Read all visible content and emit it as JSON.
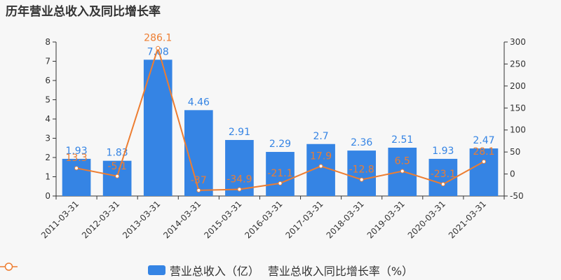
{
  "title": "历年营业总收入及同比增长率",
  "colors": {
    "bar": "#3584e4",
    "line": "#ed7d31",
    "axis": "#333333",
    "grid": "#e0e0e0"
  },
  "legend": {
    "bar_label": "营业总收入（亿）",
    "line_label": "营业总收入同比增长率（%）"
  },
  "chart_data": {
    "type": "bar",
    "categories": [
      "2011-03-31",
      "2012-03-31",
      "2013-03-31",
      "2014-03-31",
      "2015-03-31",
      "2016-03-31",
      "2017-03-31",
      "2018-03-31",
      "2019-03-31",
      "2020-03-31",
      "2021-03-31"
    ],
    "series": [
      {
        "name": "营业总收入（亿）",
        "type": "bar",
        "axis": "left",
        "values": [
          1.93,
          1.83,
          7.08,
          4.46,
          2.91,
          2.29,
          2.7,
          2.36,
          2.51,
          1.93,
          2.47
        ],
        "labels": [
          "1.93",
          "1.83",
          "7.08",
          "4.46",
          "2.91",
          "2.29",
          "2.7",
          "2.36",
          "2.51",
          "1.93",
          "2.47"
        ]
      },
      {
        "name": "营业总收入同比增长率（%）",
        "type": "line",
        "axis": "right",
        "values": [
          13.3,
          -5.1,
          286.1,
          -37,
          -34.9,
          -21.1,
          17.9,
          -12.8,
          6.5,
          -23.1,
          28.1
        ],
        "labels": [
          "13.3",
          "-5.1",
          "286.1",
          "-37",
          "-34.9",
          "-21.1",
          "17.9",
          "-12.8",
          "6.5",
          "-23.1",
          "28.1"
        ]
      }
    ],
    "y_left": {
      "ylim": [
        0,
        8
      ],
      "ticks": [
        "0",
        "1",
        "2",
        "3",
        "4",
        "5",
        "6",
        "7",
        "8"
      ]
    },
    "y_right": {
      "ylim": [
        -50,
        300
      ],
      "ticks": [
        "-50",
        "0",
        "50",
        "100",
        "150",
        "200",
        "250",
        "300"
      ]
    },
    "grid": false,
    "legend_position": "bottom"
  }
}
